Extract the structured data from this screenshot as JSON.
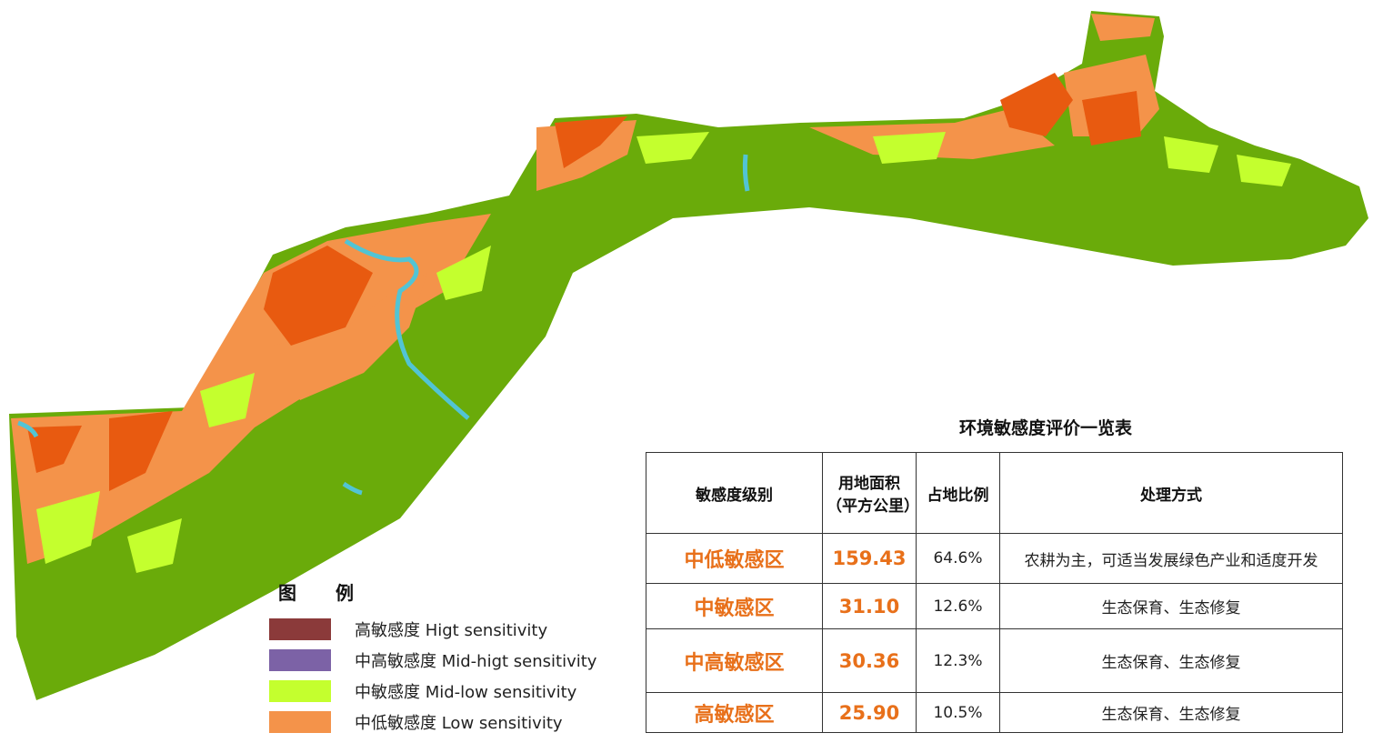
{
  "colors": {
    "high": "#8b3a3a",
    "mid_high": "#7c62a6",
    "mid_low": "#c4ff2e",
    "low": "#f4934a",
    "base_green": "#6aab0a",
    "orange_red": "#e85a10",
    "river": "#52c4d4"
  },
  "legend": {
    "title": "图 例",
    "items": [
      {
        "label": "高敏感度 Higt sensitivity",
        "color": "#8b3a3a"
      },
      {
        "label": "中高敏感度 Mid-higt sensitivity",
        "color": "#7c62a6"
      },
      {
        "label": "中敏感度 Mid-low sensitivity",
        "color": "#c4ff2e"
      },
      {
        "label": "中低敏感度 Low sensitivity",
        "color": "#f4934a"
      }
    ]
  },
  "table": {
    "title": "环境敏感度评价一览表",
    "headers": {
      "level": "敏感度级别",
      "area": "用地面积（平方公里）",
      "ratio": "占地比例",
      "treatment": "处理方式"
    },
    "rows": [
      {
        "level": "中低敏感区",
        "area": "159.43",
        "ratio": "64.6%",
        "treatment": "农耕为主，可适当发展绿色产业和适度开发"
      },
      {
        "level": "中敏感区",
        "area": "31.10",
        "ratio": "12.6%",
        "treatment": "生态保育、生态修复"
      },
      {
        "level": "中高敏感区",
        "area": "30.36",
        "ratio": "12.3%",
        "treatment": "生态保育、生态修复"
      },
      {
        "level": "高敏感区",
        "area": "25.90",
        "ratio": "10.5%",
        "treatment": "生态保育、生态修复"
      }
    ]
  }
}
